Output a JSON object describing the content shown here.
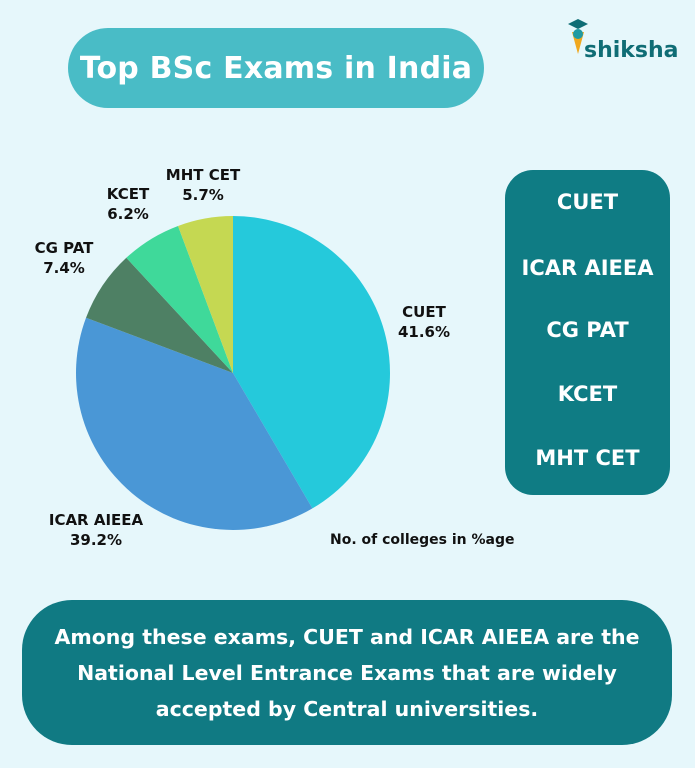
{
  "title": "Top BSc Exams in India",
  "logo_text": "shiksha",
  "chart_data": {
    "type": "pie",
    "unit": "%",
    "caption": "No. of colleges in %age",
    "slices": [
      {
        "label": "CUET",
        "value": 41.6,
        "display": "41.6%",
        "color": "#25c9db"
      },
      {
        "label": "ICAR AIEEA",
        "value": 39.2,
        "display": "39.2%",
        "color": "#4a97d6"
      },
      {
        "label": "CG PAT",
        "value": 7.4,
        "display": "7.4%",
        "color": "#4e8064"
      },
      {
        "label": "KCET",
        "value": 6.2,
        "display": "6.2%",
        "color": "#3fd99a"
      },
      {
        "label": "MHT CET",
        "value": 5.7,
        "display": "5.7%",
        "color": "#c5d852"
      }
    ]
  },
  "legend": [
    "CUET",
    "ICAR AIEEA",
    "CG PAT",
    "KCET",
    "MHT CET"
  ],
  "summary": "Among these exams, CUET and ICAR AIEEA are the National Level Entrance Exams that are widely accepted by Central universities."
}
